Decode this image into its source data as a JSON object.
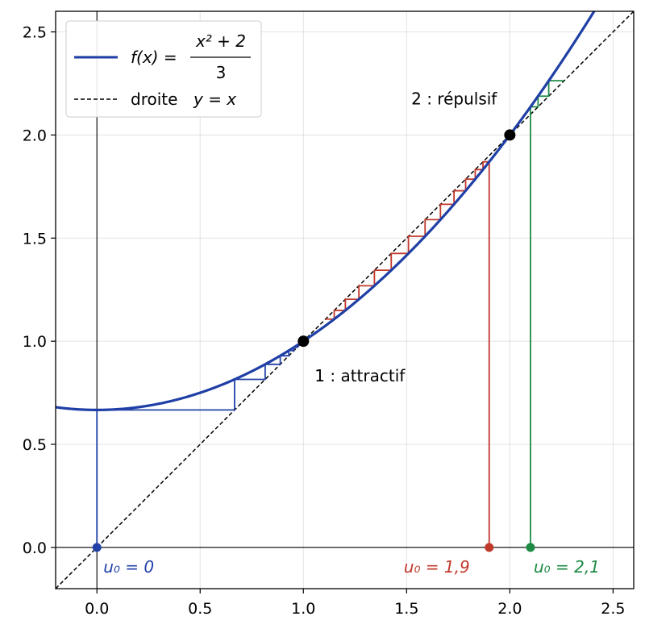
{
  "chart_data": {
    "type": "line",
    "xlim": [
      -0.2,
      2.6
    ],
    "ylim": [
      -0.2,
      2.6
    ],
    "xticks": [
      "0.0",
      "0.5",
      "1.0",
      "1.5",
      "2.0",
      "2.5"
    ],
    "yticks": [
      "0.0",
      "0.5",
      "1.0",
      "1.5",
      "2.0",
      "2.5"
    ],
    "grid": true,
    "legend_position": "top-left",
    "legend": {
      "curve": {
        "label_prefix": "f(x) =",
        "numerator": "x² + 2",
        "denominator": "3"
      },
      "diagonal": {
        "label_prefix": "droite",
        "label_eq": "y = x"
      }
    },
    "series": [
      {
        "name": "f(x) = (x² + 2)/3",
        "kind": "function",
        "color": "#1f3fa6",
        "x_range": [
          -0.2,
          2.6
        ]
      },
      {
        "name": "droite y = x",
        "kind": "line",
        "color": "#000000",
        "dash": true,
        "x_range": [
          -0.2,
          2.6
        ]
      }
    ],
    "fixed_points": [
      {
        "x": 1,
        "y": 1,
        "label": "1 : attractif"
      },
      {
        "x": 2,
        "y": 2,
        "label": "2 : répulsif"
      }
    ],
    "cobwebs": [
      {
        "u0": 0,
        "label": "u₀ = 0",
        "color": "#2342a8",
        "steps": 12
      },
      {
        "u0": 1.9,
        "label": "u₀ = 1,9",
        "color": "#c0392b",
        "steps": 13
      },
      {
        "u0": 2.1,
        "label": "u₀ = 2,1",
        "color": "#1e8a45",
        "steps": 3
      }
    ]
  }
}
